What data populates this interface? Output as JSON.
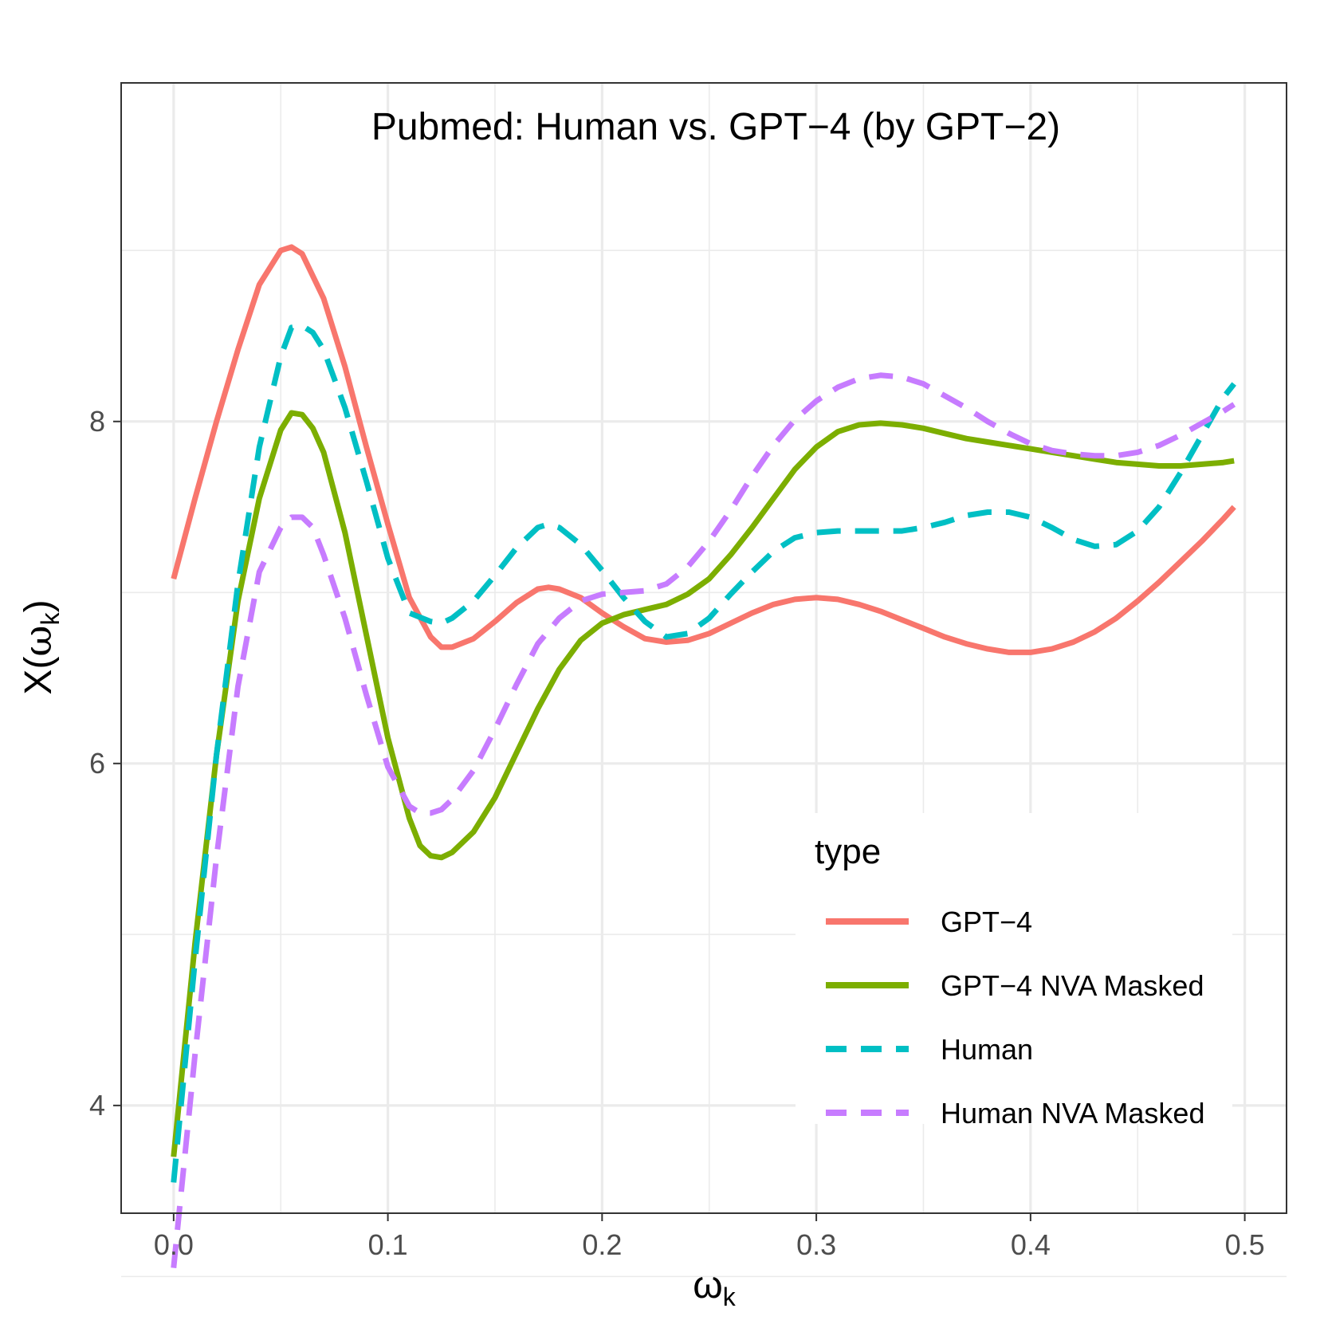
{
  "chart_data": {
    "type": "line",
    "title": "Pubmed: Human vs. GPT−4 (by GPT−2)",
    "xlabel_main": "ω",
    "xlabel_sub": "k",
    "ylabel_prefix": "X(",
    "ylabel_main": "ω",
    "ylabel_sub": "k",
    "ylabel_suffix": ")",
    "xlim": [
      -0.0245,
      0.5195
    ],
    "ylim": [
      3.37,
      9.98
    ],
    "x_ticks": [
      0.0,
      0.1,
      0.2,
      0.3,
      0.4,
      0.5
    ],
    "x_tick_labels": [
      "0.0",
      "0.1",
      "0.2",
      "0.3",
      "0.4",
      "0.5"
    ],
    "y_ticks": [
      4,
      6,
      8
    ],
    "y_tick_labels": [
      "4",
      "6",
      "8"
    ],
    "y_minor_ticks": [
      3,
      5,
      7,
      9
    ],
    "x_minor_ticks": [
      0.05,
      0.15,
      0.25,
      0.35,
      0.45
    ],
    "grid": true,
    "legend": {
      "title": "type",
      "position": "bottom-right-inside",
      "entries": [
        "GPT−4",
        "GPT−4 NVA Masked",
        "Human",
        "Human NVA Masked"
      ]
    },
    "series": [
      {
        "name": "GPT−4",
        "color": "#F8766D",
        "dash": "solid",
        "points": [
          [
            0.0,
            7.08
          ],
          [
            0.01,
            7.55
          ],
          [
            0.02,
            8.0
          ],
          [
            0.03,
            8.42
          ],
          [
            0.04,
            8.8
          ],
          [
            0.05,
            9.0
          ],
          [
            0.055,
            9.02
          ],
          [
            0.06,
            8.98
          ],
          [
            0.07,
            8.72
          ],
          [
            0.08,
            8.32
          ],
          [
            0.09,
            7.85
          ],
          [
            0.1,
            7.4
          ],
          [
            0.11,
            6.97
          ],
          [
            0.12,
            6.74
          ],
          [
            0.125,
            6.68
          ],
          [
            0.13,
            6.68
          ],
          [
            0.14,
            6.73
          ],
          [
            0.15,
            6.83
          ],
          [
            0.16,
            6.94
          ],
          [
            0.17,
            7.02
          ],
          [
            0.175,
            7.03
          ],
          [
            0.18,
            7.02
          ],
          [
            0.19,
            6.97
          ],
          [
            0.2,
            6.88
          ],
          [
            0.21,
            6.8
          ],
          [
            0.22,
            6.73
          ],
          [
            0.23,
            6.71
          ],
          [
            0.24,
            6.72
          ],
          [
            0.25,
            6.76
          ],
          [
            0.26,
            6.82
          ],
          [
            0.27,
            6.88
          ],
          [
            0.28,
            6.93
          ],
          [
            0.29,
            6.96
          ],
          [
            0.3,
            6.97
          ],
          [
            0.31,
            6.96
          ],
          [
            0.32,
            6.93
          ],
          [
            0.33,
            6.89
          ],
          [
            0.34,
            6.84
          ],
          [
            0.35,
            6.79
          ],
          [
            0.36,
            6.74
          ],
          [
            0.37,
            6.7
          ],
          [
            0.38,
            6.67
          ],
          [
            0.39,
            6.65
          ],
          [
            0.4,
            6.65
          ],
          [
            0.41,
            6.67
          ],
          [
            0.42,
            6.71
          ],
          [
            0.43,
            6.77
          ],
          [
            0.44,
            6.85
          ],
          [
            0.45,
            6.95
          ],
          [
            0.46,
            7.06
          ],
          [
            0.47,
            7.18
          ],
          [
            0.48,
            7.3
          ],
          [
            0.49,
            7.43
          ],
          [
            0.495,
            7.5
          ]
        ]
      },
      {
        "name": "GPT−4 NVA Masked",
        "color": "#7CAE00",
        "dash": "solid",
        "points": [
          [
            0.0,
            3.7
          ],
          [
            0.01,
            4.95
          ],
          [
            0.02,
            6.05
          ],
          [
            0.03,
            6.95
          ],
          [
            0.04,
            7.55
          ],
          [
            0.05,
            7.95
          ],
          [
            0.055,
            8.05
          ],
          [
            0.06,
            8.04
          ],
          [
            0.065,
            7.96
          ],
          [
            0.07,
            7.82
          ],
          [
            0.08,
            7.35
          ],
          [
            0.09,
            6.75
          ],
          [
            0.1,
            6.15
          ],
          [
            0.11,
            5.68
          ],
          [
            0.115,
            5.52
          ],
          [
            0.12,
            5.46
          ],
          [
            0.125,
            5.45
          ],
          [
            0.13,
            5.48
          ],
          [
            0.14,
            5.6
          ],
          [
            0.15,
            5.8
          ],
          [
            0.16,
            6.06
          ],
          [
            0.17,
            6.32
          ],
          [
            0.18,
            6.55
          ],
          [
            0.19,
            6.72
          ],
          [
            0.2,
            6.82
          ],
          [
            0.21,
            6.87
          ],
          [
            0.22,
            6.9
          ],
          [
            0.23,
            6.93
          ],
          [
            0.24,
            6.99
          ],
          [
            0.25,
            7.08
          ],
          [
            0.26,
            7.22
          ],
          [
            0.27,
            7.38
          ],
          [
            0.28,
            7.55
          ],
          [
            0.29,
            7.72
          ],
          [
            0.3,
            7.85
          ],
          [
            0.31,
            7.94
          ],
          [
            0.32,
            7.98
          ],
          [
            0.33,
            7.99
          ],
          [
            0.34,
            7.98
          ],
          [
            0.35,
            7.96
          ],
          [
            0.36,
            7.93
          ],
          [
            0.37,
            7.9
          ],
          [
            0.38,
            7.88
          ],
          [
            0.39,
            7.86
          ],
          [
            0.4,
            7.84
          ],
          [
            0.41,
            7.82
          ],
          [
            0.42,
            7.8
          ],
          [
            0.43,
            7.78
          ],
          [
            0.44,
            7.76
          ],
          [
            0.45,
            7.75
          ],
          [
            0.46,
            7.74
          ],
          [
            0.47,
            7.74
          ],
          [
            0.48,
            7.75
          ],
          [
            0.49,
            7.76
          ],
          [
            0.495,
            7.77
          ]
        ]
      },
      {
        "name": "Human",
        "color": "#00BFC4",
        "dash": "dashed",
        "points": [
          [
            0.0,
            3.55
          ],
          [
            0.01,
            4.85
          ],
          [
            0.02,
            6.05
          ],
          [
            0.03,
            7.05
          ],
          [
            0.04,
            7.85
          ],
          [
            0.05,
            8.38
          ],
          [
            0.055,
            8.55
          ],
          [
            0.06,
            8.56
          ],
          [
            0.065,
            8.52
          ],
          [
            0.07,
            8.42
          ],
          [
            0.08,
            8.08
          ],
          [
            0.09,
            7.65
          ],
          [
            0.1,
            7.2
          ],
          [
            0.11,
            6.88
          ],
          [
            0.12,
            6.83
          ],
          [
            0.125,
            6.82
          ],
          [
            0.13,
            6.85
          ],
          [
            0.14,
            6.95
          ],
          [
            0.15,
            7.1
          ],
          [
            0.16,
            7.26
          ],
          [
            0.17,
            7.38
          ],
          [
            0.175,
            7.4
          ],
          [
            0.18,
            7.38
          ],
          [
            0.19,
            7.28
          ],
          [
            0.2,
            7.13
          ],
          [
            0.21,
            6.97
          ],
          [
            0.22,
            6.83
          ],
          [
            0.23,
            6.74
          ],
          [
            0.24,
            6.76
          ],
          [
            0.25,
            6.85
          ],
          [
            0.26,
            6.99
          ],
          [
            0.27,
            7.12
          ],
          [
            0.28,
            7.24
          ],
          [
            0.29,
            7.32
          ],
          [
            0.3,
            7.35
          ],
          [
            0.31,
            7.36
          ],
          [
            0.32,
            7.36
          ],
          [
            0.33,
            7.36
          ],
          [
            0.34,
            7.36
          ],
          [
            0.35,
            7.38
          ],
          [
            0.36,
            7.41
          ],
          [
            0.37,
            7.45
          ],
          [
            0.38,
            7.47
          ],
          [
            0.39,
            7.47
          ],
          [
            0.4,
            7.44
          ],
          [
            0.41,
            7.38
          ],
          [
            0.42,
            7.31
          ],
          [
            0.43,
            7.27
          ],
          [
            0.44,
            7.28
          ],
          [
            0.45,
            7.36
          ],
          [
            0.46,
            7.5
          ],
          [
            0.47,
            7.7
          ],
          [
            0.48,
            7.92
          ],
          [
            0.49,
            8.14
          ],
          [
            0.495,
            8.22
          ]
        ]
      },
      {
        "name": "Human NVA Masked",
        "color": "#C77CFF",
        "dash": "dashed",
        "points": [
          [
            0.0,
            3.05
          ],
          [
            0.01,
            4.3
          ],
          [
            0.02,
            5.45
          ],
          [
            0.03,
            6.45
          ],
          [
            0.04,
            7.12
          ],
          [
            0.05,
            7.38
          ],
          [
            0.055,
            7.44
          ],
          [
            0.06,
            7.44
          ],
          [
            0.065,
            7.38
          ],
          [
            0.07,
            7.22
          ],
          [
            0.08,
            6.85
          ],
          [
            0.09,
            6.4
          ],
          [
            0.1,
            5.98
          ],
          [
            0.11,
            5.75
          ],
          [
            0.115,
            5.71
          ],
          [
            0.12,
            5.71
          ],
          [
            0.125,
            5.73
          ],
          [
            0.13,
            5.79
          ],
          [
            0.14,
            5.96
          ],
          [
            0.15,
            6.2
          ],
          [
            0.16,
            6.46
          ],
          [
            0.17,
            6.7
          ],
          [
            0.18,
            6.85
          ],
          [
            0.19,
            6.95
          ],
          [
            0.2,
            6.99
          ],
          [
            0.21,
            7.0
          ],
          [
            0.22,
            7.01
          ],
          [
            0.23,
            7.05
          ],
          [
            0.24,
            7.15
          ],
          [
            0.25,
            7.3
          ],
          [
            0.26,
            7.48
          ],
          [
            0.27,
            7.68
          ],
          [
            0.28,
            7.86
          ],
          [
            0.29,
            8.01
          ],
          [
            0.3,
            8.12
          ],
          [
            0.31,
            8.2
          ],
          [
            0.32,
            8.25
          ],
          [
            0.33,
            8.27
          ],
          [
            0.34,
            8.26
          ],
          [
            0.35,
            8.22
          ],
          [
            0.36,
            8.15
          ],
          [
            0.37,
            8.08
          ],
          [
            0.38,
            8.0
          ],
          [
            0.39,
            7.93
          ],
          [
            0.4,
            7.87
          ],
          [
            0.41,
            7.83
          ],
          [
            0.42,
            7.81
          ],
          [
            0.43,
            7.8
          ],
          [
            0.44,
            7.8
          ],
          [
            0.45,
            7.82
          ],
          [
            0.46,
            7.86
          ],
          [
            0.47,
            7.92
          ],
          [
            0.48,
            7.99
          ],
          [
            0.49,
            8.06
          ],
          [
            0.495,
            8.1
          ]
        ]
      }
    ]
  }
}
